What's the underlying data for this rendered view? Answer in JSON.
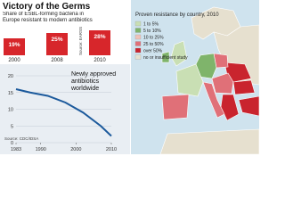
{
  "chart_data": [
    {
      "type": "bar",
      "title": "Victory of the Germs",
      "subtitle": "Share of ESBL-forming bacteria in Europe resistant to modern antibiotics",
      "categories": [
        "2000",
        "2008",
        "2010"
      ],
      "values": [
        19,
        25,
        28
      ],
      "value_labels": [
        "19%",
        "25%",
        "28%"
      ],
      "color": "#d7262b",
      "source": "Source: EARSS"
    },
    {
      "type": "line",
      "title": "Newly approved antibiotics worldwide",
      "x": [
        1983,
        1987,
        1992,
        1997,
        2002,
        2007,
        2010
      ],
      "values": [
        16,
        15,
        14,
        12,
        9,
        5,
        2
      ],
      "color": "#1c5a9c",
      "xlim": [
        1983,
        2010
      ],
      "xticks": [
        1983,
        1990,
        2000,
        2010
      ],
      "ylim": [
        0,
        20
      ],
      "yticks": [
        0,
        5,
        10,
        15,
        20
      ],
      "source": "Source: CDC/IDSA"
    },
    {
      "type": "map",
      "title": "Proven resistance by country, 2010",
      "legend": [
        {
          "label": "1 to 5%",
          "color": "#c9dfb4"
        },
        {
          "label": "5 to 10%",
          "color": "#7fb46b"
        },
        {
          "label": "10 to 25%",
          "color": "#f0c2b8"
        },
        {
          "label": "25 to 50%",
          "color": "#e07078"
        },
        {
          "label": "over 50%",
          "color": "#c9242e"
        },
        {
          "label": "no or insufficient study",
          "color": "#e6e0cf"
        }
      ]
    }
  ]
}
